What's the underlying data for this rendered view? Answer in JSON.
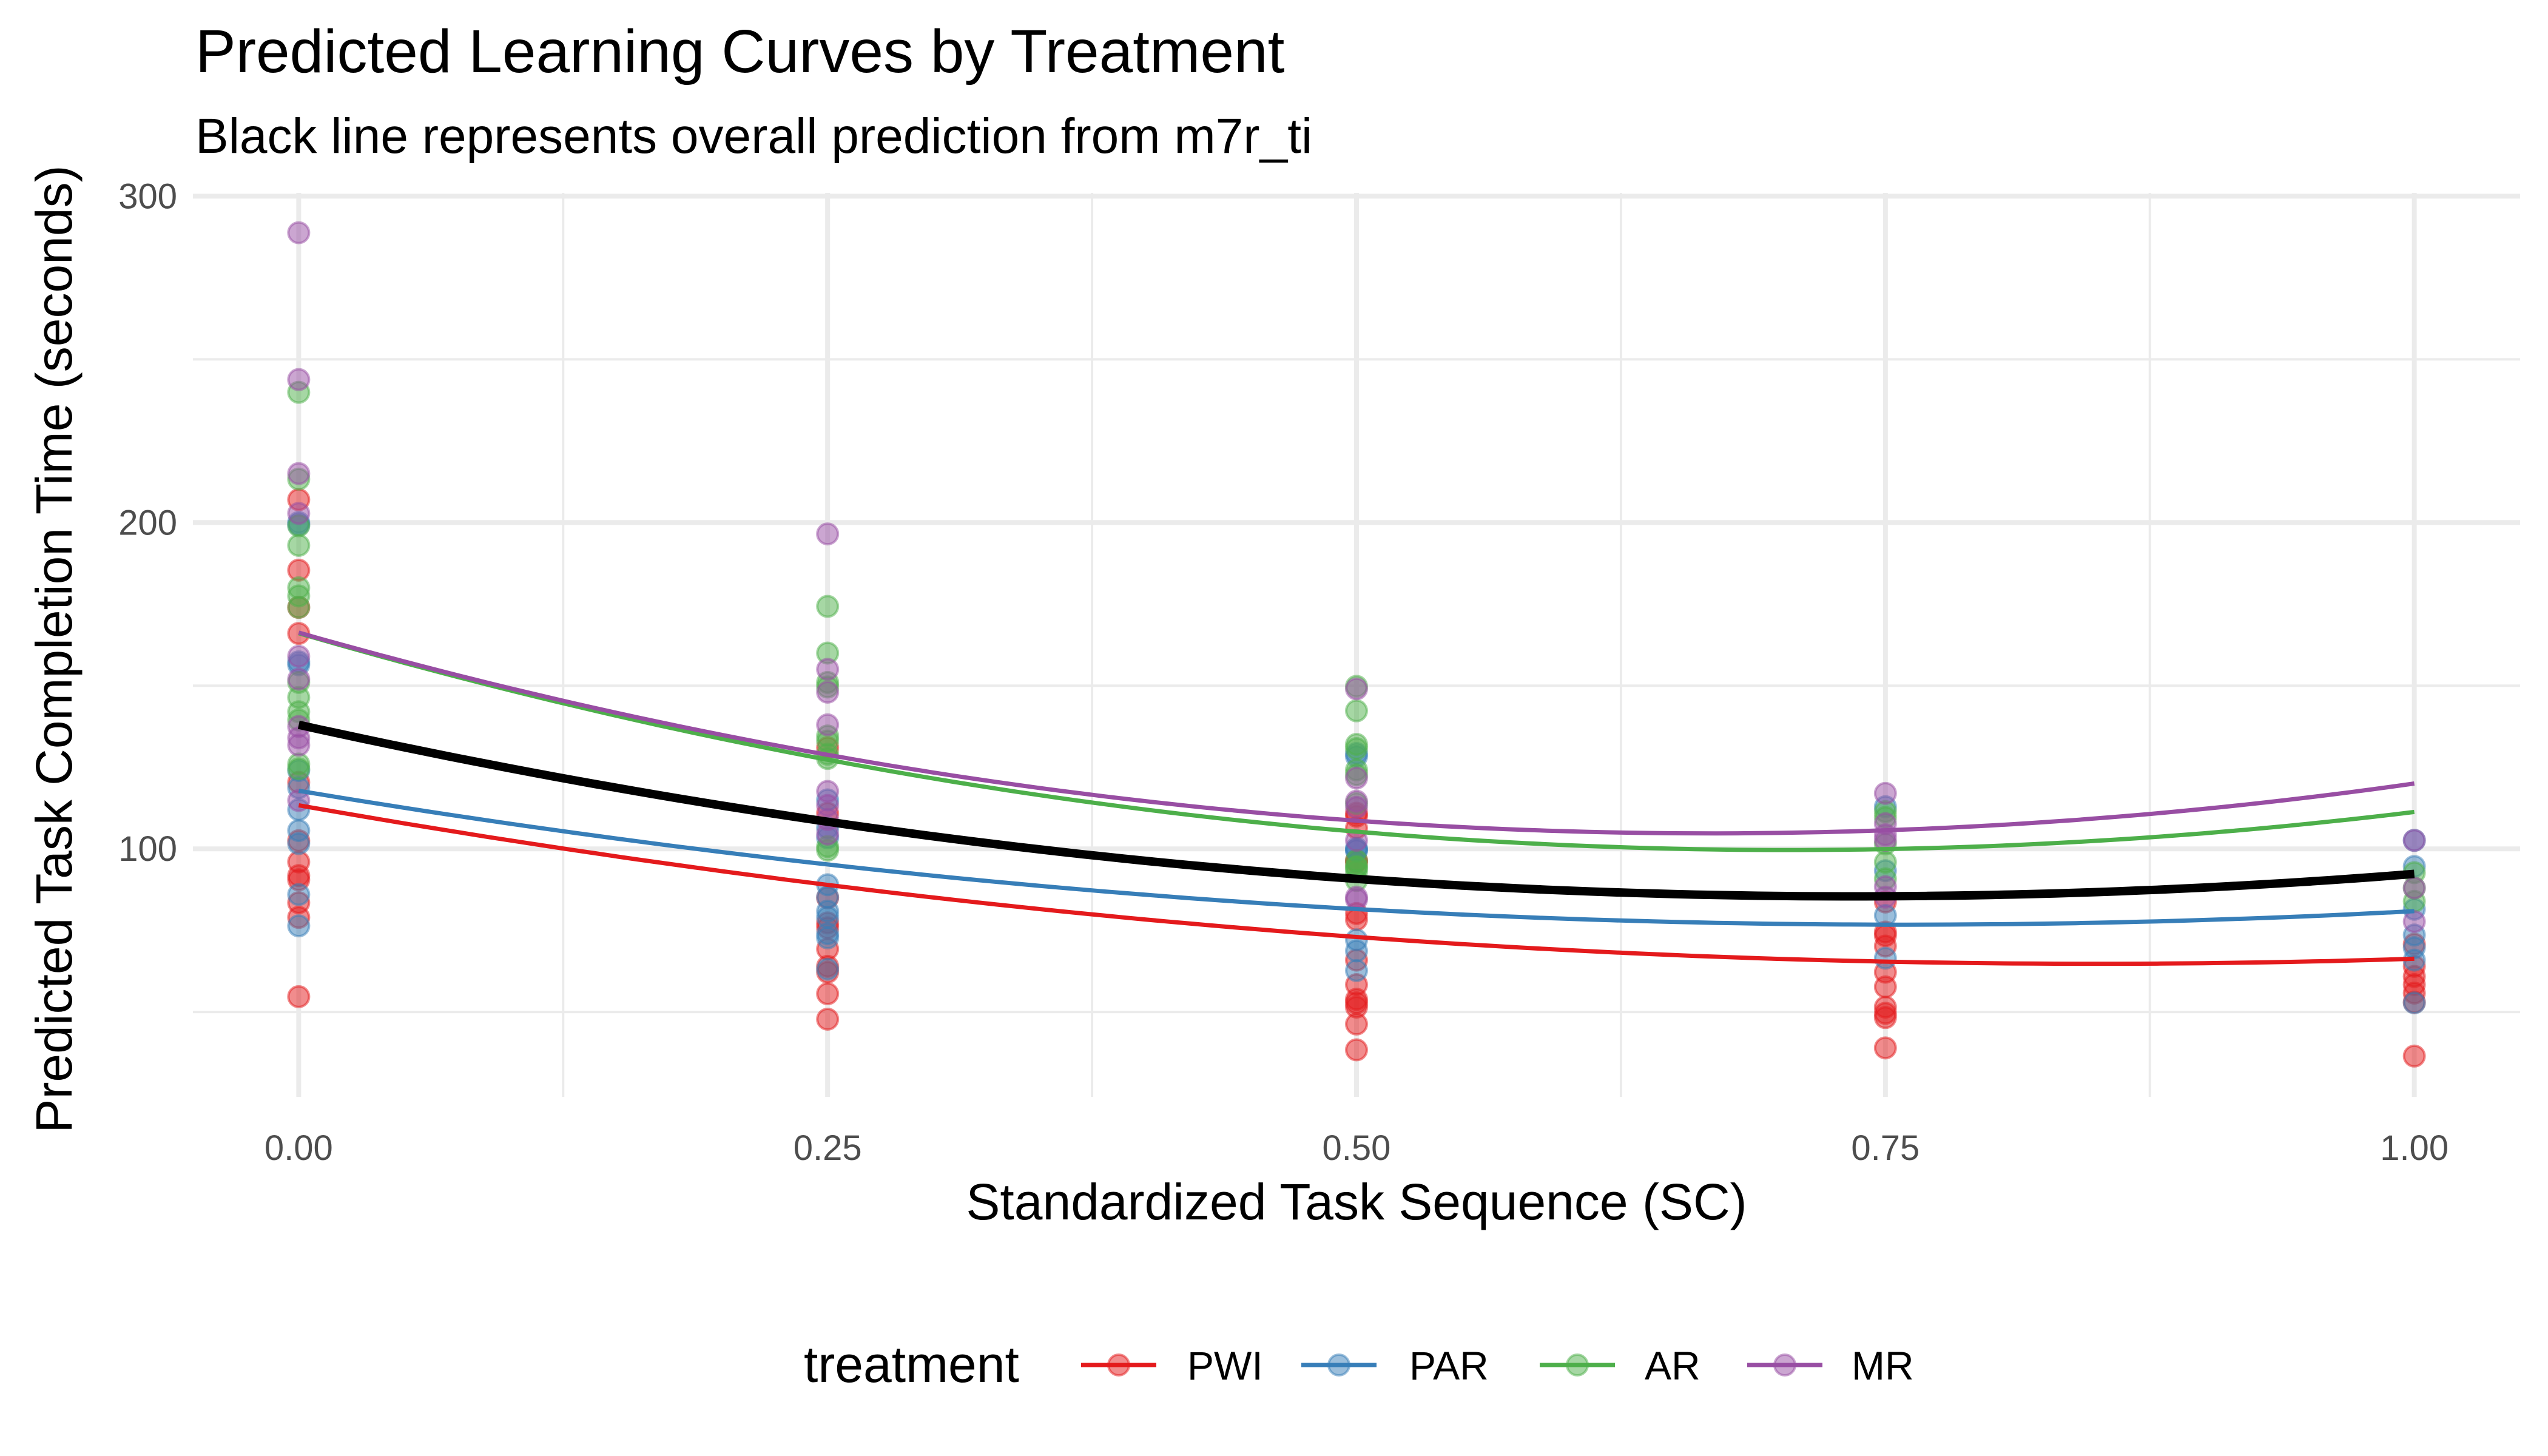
{
  "chart_data": {
    "type": "scatter",
    "title": "Predicted Learning Curves by Treatment",
    "subtitle": "Black line represents overall prediction from m7r_ti",
    "xlabel": "Standardized Task Sequence (SC)",
    "ylabel": "Predicted Task Completion Time (seconds)",
    "xlim": [
      -0.05,
      1.05
    ],
    "ylim": [
      24,
      301
    ],
    "x_ticks": [
      0,
      0.25,
      0.5,
      0.75,
      1.0
    ],
    "x_tick_labels": [
      "0.00",
      "0.25",
      "0.50",
      "0.75",
      "1.00"
    ],
    "y_ticks": [
      100,
      200,
      300
    ],
    "y_tick_labels": [
      "100",
      "200",
      "300"
    ],
    "grid": true,
    "legend": {
      "title": "treatment",
      "placement": "bottom",
      "entries": [
        "PWI",
        "PAR",
        "AR",
        "MR"
      ]
    },
    "series": [
      {
        "name": "PWI",
        "color": "#E41A1C",
        "points": [
          [
            0,
            207
          ],
          [
            0,
            185.4
          ],
          [
            0,
            174
          ],
          [
            0,
            166
          ],
          [
            0,
            120.4
          ],
          [
            0,
            102.5
          ],
          [
            0,
            96
          ],
          [
            0,
            91.8
          ],
          [
            0,
            90.5
          ],
          [
            0,
            83.5
          ],
          [
            0,
            79
          ],
          [
            0,
            54.7
          ],
          [
            0.25,
            131
          ],
          [
            0.25,
            110.9
          ],
          [
            0.25,
            85
          ],
          [
            0.25,
            77.3
          ],
          [
            0.25,
            75.8
          ],
          [
            0.25,
            69.3
          ],
          [
            0.25,
            64
          ],
          [
            0.25,
            62.2
          ],
          [
            0.25,
            55.6
          ],
          [
            0.25,
            47.8
          ],
          [
            0.5,
            110.9
          ],
          [
            0.5,
            110
          ],
          [
            0.5,
            106.4
          ],
          [
            0.5,
            95.9
          ],
          [
            0.5,
            96.4
          ],
          [
            0.5,
            80.2
          ],
          [
            0.5,
            78.3
          ],
          [
            0.5,
            65.9
          ],
          [
            0.5,
            58.4
          ],
          [
            0.5,
            53.9
          ],
          [
            0.5,
            52.8
          ],
          [
            0.5,
            51.5
          ],
          [
            0.5,
            46.3
          ],
          [
            0.5,
            38.4
          ],
          [
            0.75,
            83.7
          ],
          [
            0.75,
            74.5
          ],
          [
            0.75,
            73.4
          ],
          [
            0.75,
            70.2
          ],
          [
            0.75,
            62.2
          ],
          [
            0.75,
            57.7
          ],
          [
            0.75,
            51.5
          ],
          [
            0.75,
            49.6
          ],
          [
            0.75,
            48.3
          ],
          [
            0.75,
            39
          ],
          [
            1,
            70.8
          ],
          [
            1,
            64
          ],
          [
            1,
            60.9
          ],
          [
            1,
            58.4
          ],
          [
            1,
            55.8
          ],
          [
            1,
            53
          ],
          [
            1,
            36.5
          ]
        ],
        "curve": [
          113.3,
          102.6,
          93.2,
          85.1,
          78.4,
          73.0,
          68.9,
          66.2,
          65.0,
          65.0,
          66.3
        ]
      },
      {
        "name": "PAR",
        "color": "#377EB8",
        "points": [
          [
            0,
            199.3
          ],
          [
            0,
            200
          ],
          [
            0,
            157.3
          ],
          [
            0,
            156.4
          ],
          [
            0,
            124
          ],
          [
            0,
            118.7
          ],
          [
            0,
            112
          ],
          [
            0,
            105.6
          ],
          [
            0,
            101.6
          ],
          [
            0,
            86
          ],
          [
            0,
            76.4
          ],
          [
            0.25,
            115
          ],
          [
            0.25,
            106.4
          ],
          [
            0.25,
            103.4
          ],
          [
            0.25,
            89
          ],
          [
            0.25,
            85.2
          ],
          [
            0.25,
            80.9
          ],
          [
            0.25,
            79
          ],
          [
            0.25,
            74
          ],
          [
            0.25,
            72.7
          ],
          [
            0.25,
            63.1
          ],
          [
            0.5,
            129.2
          ],
          [
            0.5,
            128.3
          ],
          [
            0.5,
            100.2
          ],
          [
            0.5,
            99.5
          ],
          [
            0.5,
            99.6
          ],
          [
            0.5,
            72.1
          ],
          [
            0.5,
            68.7
          ],
          [
            0.5,
            62.7
          ],
          [
            0.75,
            112.9
          ],
          [
            0.75,
            93.3
          ],
          [
            0.75,
            79.6
          ],
          [
            0.75,
            66.5
          ],
          [
            1,
            102.6
          ],
          [
            1,
            94.6
          ],
          [
            1,
            81.5
          ],
          [
            1,
            73.6
          ],
          [
            1,
            69.7
          ],
          [
            1,
            65.9
          ],
          [
            1,
            52.8
          ]
        ],
        "curve": [
          117.8,
          107.7,
          99.0,
          91.7,
          86.1,
          81.5,
          78.5,
          77.0,
          76.9,
          78.2,
          80.9
        ]
      },
      {
        "name": "AR",
        "color": "#4DAF4A",
        "points": [
          [
            0,
            239.9
          ],
          [
            0,
            213.3
          ],
          [
            0,
            199
          ],
          [
            0,
            193
          ],
          [
            0,
            180
          ],
          [
            0,
            177.5
          ],
          [
            0,
            174
          ],
          [
            0,
            151
          ],
          [
            0,
            146.4
          ],
          [
            0,
            142
          ],
          [
            0,
            139.5
          ],
          [
            0,
            126
          ],
          [
            0,
            124.5
          ],
          [
            0.25,
            174.3
          ],
          [
            0.25,
            160
          ],
          [
            0.25,
            151
          ],
          [
            0.25,
            149.6
          ],
          [
            0.25,
            134.6
          ],
          [
            0.25,
            133
          ],
          [
            0.25,
            129
          ],
          [
            0.25,
            127.7
          ],
          [
            0.25,
            100.7
          ],
          [
            0.25,
            99.6
          ],
          [
            0.5,
            149.8
          ],
          [
            0.5,
            142.3
          ],
          [
            0.5,
            132
          ],
          [
            0.5,
            130.7
          ],
          [
            0.5,
            124.2
          ],
          [
            0.5,
            122.7
          ],
          [
            0.5,
            113.9
          ],
          [
            0.5,
            94.3
          ],
          [
            0.5,
            93
          ],
          [
            0.5,
            96.4
          ],
          [
            0.5,
            94.6
          ],
          [
            0.5,
            90.3
          ],
          [
            0.75,
            111.4
          ],
          [
            0.75,
            109.6
          ],
          [
            0.75,
            101.5
          ],
          [
            0.75,
            95.9
          ],
          [
            0.75,
            90.8
          ],
          [
            1,
            92.7
          ],
          [
            1,
            88
          ],
          [
            1,
            83.9
          ]
        ],
        "curve": [
          166.3,
          148.6,
          133.6,
          121.3,
          111.7,
          104.9,
          101.8,
          100.4,
          100.9,
          103.8,
          111.6
        ]
      },
      {
        "name": "MR",
        "color": "#984EA3",
        "points": [
          [
            0,
            288.8
          ],
          [
            0,
            243.8
          ],
          [
            0,
            215
          ],
          [
            0,
            202.8
          ],
          [
            0,
            159
          ],
          [
            0,
            152
          ],
          [
            0,
            137.5
          ],
          [
            0,
            134
          ],
          [
            0,
            131.8
          ],
          [
            0,
            114.8
          ],
          [
            0.25,
            196.5
          ],
          [
            0.25,
            155
          ],
          [
            0.25,
            148
          ],
          [
            0.25,
            138
          ],
          [
            0.25,
            117.6
          ],
          [
            0.25,
            113.3
          ],
          [
            0.25,
            109
          ],
          [
            0.25,
            104.5
          ],
          [
            0.5,
            149
          ],
          [
            0.5,
            121.7
          ],
          [
            0.5,
            114.6
          ],
          [
            0.5,
            112.7
          ],
          [
            0.5,
            102.6
          ],
          [
            0.5,
            85.2
          ],
          [
            0.5,
            84.5
          ],
          [
            0.75,
            117
          ],
          [
            0.75,
            107.7
          ],
          [
            0.75,
            104.3
          ],
          [
            0.75,
            102.6
          ],
          [
            0.75,
            88.4
          ],
          [
            0.75,
            85.2
          ],
          [
            1,
            102.6
          ],
          [
            1,
            88
          ],
          [
            1,
            77.7
          ]
        ],
        "curve": [
          166.3,
          149.2,
          134.9,
          123.4,
          114.6,
          108.6,
          105.4,
          104.9,
          107.2,
          112.2,
          120.0
        ]
      }
    ],
    "overall": {
      "name": "overall (m7r_ti)",
      "color": "#000000",
      "curve_x": [
        0,
        0.1,
        0.2,
        0.3,
        0.4,
        0.5,
        0.6,
        0.7,
        0.8,
        0.9,
        1.0
      ],
      "curve": [
        138.0,
        124.7,
        113.3,
        103.8,
        96.3,
        90.8,
        87.2,
        85.6,
        85.9,
        88.1,
        92.3
      ]
    }
  }
}
